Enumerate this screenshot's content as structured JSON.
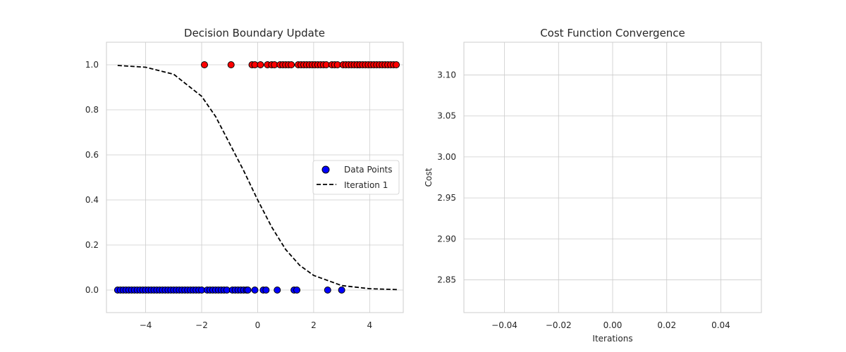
{
  "colors": {
    "class0": "#0000ff",
    "class1": "#ff0000",
    "marker_edge": "#000000",
    "boundary": "#000000",
    "grid": "#cccccc",
    "text": "#262626"
  },
  "chart_data": [
    {
      "type": "scatter",
      "title": "Decision Boundary Update",
      "xlabel": "",
      "ylabel": "",
      "xlim": [
        -5.4,
        5.2
      ],
      "ylim": [
        -0.1,
        1.1
      ],
      "xticks": [
        -4,
        -2,
        0,
        2,
        4
      ],
      "xtick_labels": [
        "−4",
        "−2",
        "0",
        "2",
        "4"
      ],
      "yticks": [
        0.0,
        0.2,
        0.4,
        0.6,
        0.8,
        1.0
      ],
      "ytick_labels": [
        "0.0",
        "0.2",
        "0.4",
        "0.6",
        "0.8",
        "1.0"
      ],
      "grid": true,
      "legend_position": "center-right",
      "series": [
        {
          "name": "Data Points",
          "kind": "scatter",
          "points_class0_x": [
            -5.0,
            -4.9,
            -4.8,
            -4.7,
            -4.6,
            -4.5,
            -4.4,
            -4.3,
            -4.2,
            -4.1,
            -4.0,
            -3.9,
            -3.8,
            -3.7,
            -3.6,
            -3.5,
            -3.4,
            -3.3,
            -3.2,
            -3.1,
            -3.0,
            -2.9,
            -2.8,
            -2.7,
            -2.6,
            -2.5,
            -2.4,
            -2.3,
            -2.2,
            -2.1,
            -2.0,
            -1.8,
            -1.7,
            -1.6,
            -1.5,
            -1.4,
            -1.3,
            -1.2,
            -1.1,
            -0.9,
            -0.8,
            -0.7,
            -0.6,
            -0.5,
            -0.4,
            -0.35,
            -0.1,
            0.2,
            0.3,
            0.7,
            1.3,
            1.4,
            2.5,
            3.0
          ],
          "points_class0_y": 0,
          "points_class1_x": [
            -1.9,
            -0.95,
            -0.2,
            -0.1,
            0.1,
            0.35,
            0.5,
            0.6,
            0.8,
            0.9,
            1.0,
            1.1,
            1.2,
            1.45,
            1.55,
            1.65,
            1.75,
            1.85,
            1.95,
            2.05,
            2.15,
            2.25,
            2.35,
            2.45,
            2.65,
            2.75,
            2.85,
            3.05,
            3.15,
            3.25,
            3.35,
            3.45,
            3.55,
            3.65,
            3.75,
            3.85,
            3.95,
            4.05,
            4.15,
            4.25,
            4.35,
            4.45,
            4.55,
            4.65,
            4.75,
            4.85,
            4.95
          ],
          "points_class1_y": 1
        },
        {
          "name": "Iteration 1",
          "kind": "line",
          "style": "dashed",
          "x_range": [
            -5,
            5
          ],
          "x_samples": [
            -5,
            -4,
            -3,
            -2,
            -1.5,
            -1,
            -0.5,
            0,
            0.5,
            1,
            1.5,
            2,
            3,
            4,
            5
          ],
          "y_samples": [
            0.997,
            0.989,
            0.958,
            0.86,
            0.77,
            0.65,
            0.53,
            0.4,
            0.28,
            0.18,
            0.11,
            0.065,
            0.02,
            0.006,
            0.002
          ]
        }
      ]
    },
    {
      "type": "line",
      "title": "Cost Function Convergence",
      "xlabel": "Iterations",
      "ylabel": "Cost",
      "xlim": [
        -0.055,
        0.055
      ],
      "ylim": [
        2.81,
        3.14
      ],
      "xticks": [
        -0.04,
        -0.02,
        0.0,
        0.02,
        0.04
      ],
      "xtick_labels": [
        "−0.04",
        "−0.02",
        "0.00",
        "0.02",
        "0.04"
      ],
      "yticks": [
        2.85,
        2.9,
        2.95,
        3.0,
        3.05,
        3.1
      ],
      "ytick_labels": [
        "2.85",
        "2.90",
        "2.95",
        "3.00",
        "3.05",
        "3.10"
      ],
      "grid": true,
      "series": []
    }
  ]
}
